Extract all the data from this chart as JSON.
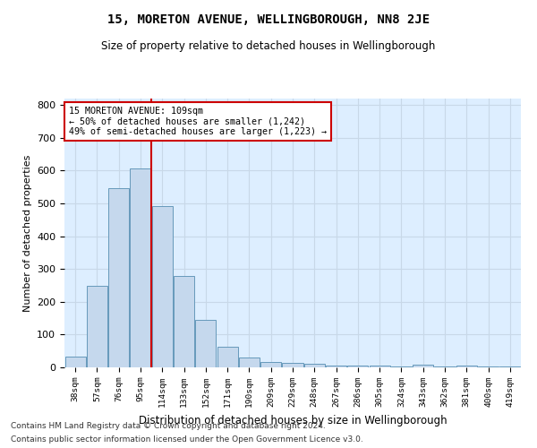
{
  "title": "15, MORETON AVENUE, WELLINGBOROUGH, NN8 2JE",
  "subtitle": "Size of property relative to detached houses in Wellingborough",
  "xlabel": "Distribution of detached houses by size in Wellingborough",
  "ylabel": "Number of detached properties",
  "categories": [
    "38sqm",
    "57sqm",
    "76sqm",
    "95sqm",
    "114sqm",
    "133sqm",
    "152sqm",
    "171sqm",
    "190sqm",
    "209sqm",
    "229sqm",
    "248sqm",
    "267sqm",
    "286sqm",
    "305sqm",
    "324sqm",
    "343sqm",
    "362sqm",
    "381sqm",
    "400sqm",
    "419sqm"
  ],
  "values": [
    33,
    248,
    547,
    607,
    493,
    280,
    145,
    63,
    30,
    17,
    13,
    12,
    5,
    5,
    5,
    2,
    7,
    2,
    5,
    2,
    4
  ],
  "bar_color": "#c5d8ed",
  "bar_edge_color": "#6699bb",
  "property_line_color": "#cc0000",
  "annotation_text1": "15 MORETON AVENUE: 109sqm",
  "annotation_text2": "← 50% of detached houses are smaller (1,242)",
  "annotation_text3": "49% of semi-detached houses are larger (1,223) →",
  "annotation_box_color": "#ffffff",
  "annotation_box_edge": "#cc0000",
  "ylim": [
    0,
    820
  ],
  "yticks": [
    0,
    100,
    200,
    300,
    400,
    500,
    600,
    700,
    800
  ],
  "grid_color": "#c8d8e8",
  "background_color": "#ddeeff",
  "fig_background": "#ffffff",
  "footer1": "Contains HM Land Registry data © Crown copyright and database right 2024.",
  "footer2": "Contains public sector information licensed under the Open Government Licence v3.0."
}
